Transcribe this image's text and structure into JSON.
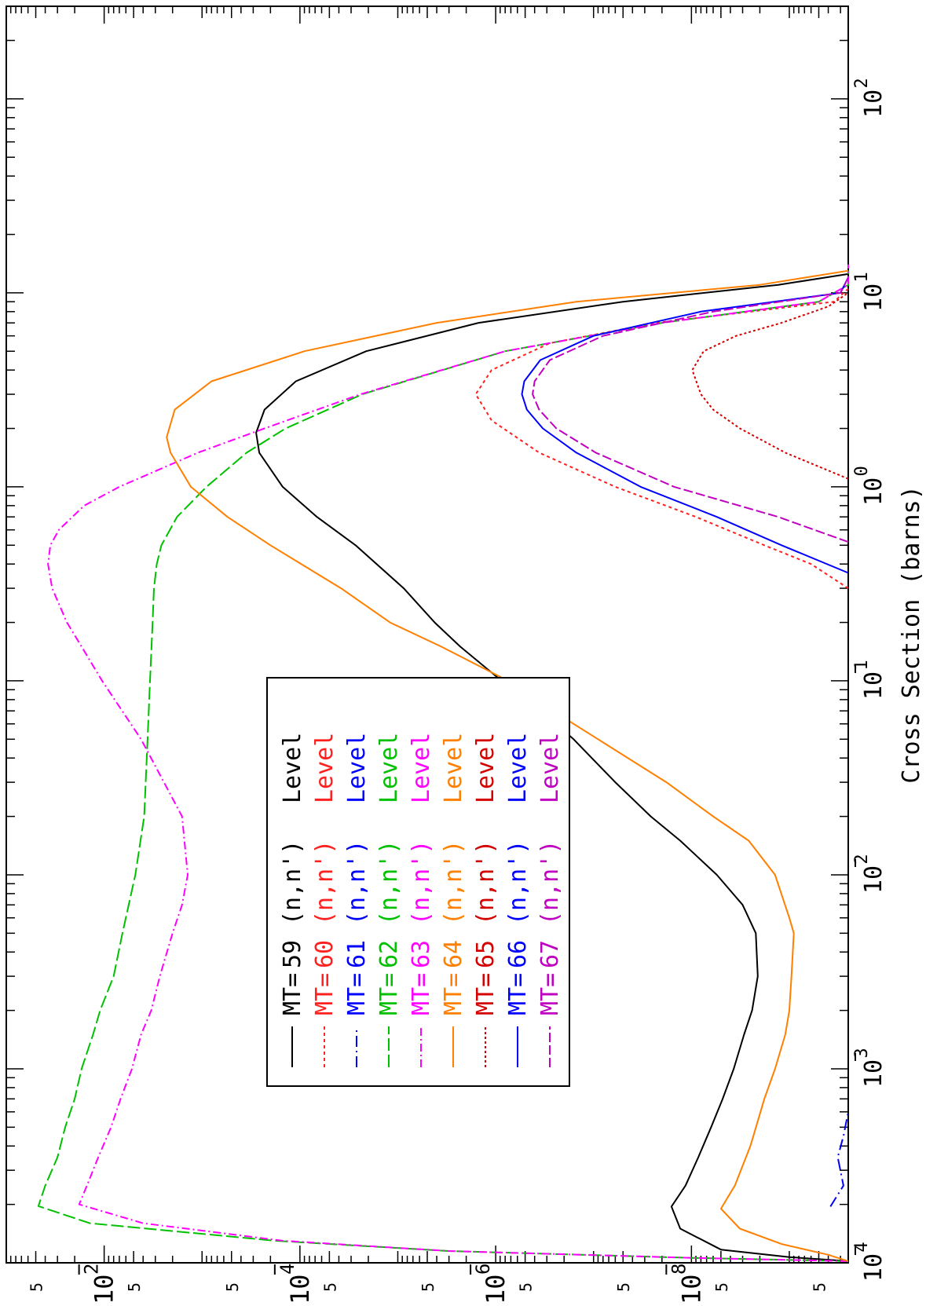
{
  "chart_data": {
    "type": "line",
    "ylabel": "Cross Section (barns)",
    "xlabel": "",
    "x_scale": "log",
    "y_scale": "log",
    "xlim": [
      0.0001,
      300
    ],
    "ylim": [
      2.5e-10,
      0.1
    ],
    "x_ticks": [
      {
        "value": 0.0001,
        "base": "10",
        "exp": "4",
        "neg": true
      },
      {
        "value": 0.001,
        "base": "10",
        "exp": "3",
        "neg": true
      },
      {
        "value": 0.01,
        "base": "10",
        "exp": "2",
        "neg": true
      },
      {
        "value": 0.1,
        "base": "10",
        "exp": "1",
        "neg": true
      },
      {
        "value": 1,
        "base": "10",
        "exp": "0",
        "neg": false
      },
      {
        "value": 10,
        "base": "10",
        "exp": "1",
        "neg": false
      },
      {
        "value": 100,
        "base": "10",
        "exp": "2",
        "neg": false
      }
    ],
    "y_ticks": [
      {
        "value": 0.01,
        "base": "10",
        "exp": "2",
        "neg": true
      },
      {
        "value": 0.0001,
        "base": "10",
        "exp": "4",
        "neg": true
      },
      {
        "value": 1e-06,
        "base": "10",
        "exp": "6",
        "neg": true
      },
      {
        "value": 1e-08,
        "base": "10",
        "exp": "8",
        "neg": true
      }
    ],
    "y_minor_labels": [
      {
        "value": 0.05,
        "label": "5"
      },
      {
        "value": 0.005,
        "label": "5"
      },
      {
        "value": 0.0005,
        "label": "5"
      },
      {
        "value": 5e-05,
        "label": "5"
      },
      {
        "value": 5e-06,
        "label": "5"
      },
      {
        "value": 5e-07,
        "label": "5"
      },
      {
        "value": 5e-08,
        "label": "5"
      },
      {
        "value": 5e-09,
        "label": "5"
      },
      {
        "value": 5e-10,
        "label": "5"
      }
    ],
    "series": [
      {
        "name": "MT= 59 (n,n') Level",
        "mt": "MT=",
        "num": "59",
        "reaction": "(n,n')",
        "level": "Level",
        "color": "#000000",
        "dash": "",
        "x": [
          0.000102,
          0.000107,
          0.000117,
          0.00015,
          0.000195,
          0.00025,
          0.00035,
          0.0005,
          0.0007,
          0.001,
          0.0015,
          0.002,
          0.003,
          0.005,
          0.007,
          0.01,
          0.015,
          0.02,
          0.03,
          0.05,
          0.07,
          0.1,
          0.15,
          0.2,
          0.3,
          0.5,
          0.7,
          1,
          1.5,
          1.9,
          2.5,
          3.5,
          5,
          7,
          9,
          11,
          12.5
        ],
        "y": [
          2.5e-10,
          1e-09,
          5e-09,
          1.3e-08,
          1.6e-08,
          1.15e-08,
          8.5e-09,
          6.3e-09,
          4.8e-09,
          3.7e-09,
          2.9e-09,
          2.4e-09,
          2.1e-09,
          2.2e-09,
          3e-09,
          5.5e-09,
          1.3e-08,
          2.6e-08,
          6e-08,
          1.6e-07,
          3.4e-07,
          8.7e-07,
          2.3e-06,
          4.2e-06,
          8.7e-06,
          2.7e-05,
          6.7e-05,
          0.00015,
          0.00026,
          0.00028,
          0.00023,
          0.00011,
          2.1e-05,
          1.5e-06,
          5e-08,
          1.3e-09,
          2.5e-10
        ]
      },
      {
        "name": "MT= 60 (n,n') Level",
        "mt": "MT=",
        "num": "60",
        "reaction": "(n,n')",
        "level": "Level",
        "color": "#ff2020",
        "dash": "4,4",
        "x": [
          0.3,
          0.4,
          0.5,
          0.7,
          1,
          1.5,
          2.2,
          3,
          4,
          5.5,
          7,
          9,
          10.5
        ],
        "y": [
          2.5e-10,
          6e-10,
          1.8e-09,
          9e-09,
          6e-08,
          3.6e-07,
          1.1e-06,
          1.6e-06,
          1.1e-06,
          2.8e-07,
          2.3e-08,
          3.5e-10,
          2.5e-10
        ]
      },
      {
        "name": "MT= 61 (n,n') Level",
        "mt": "MT=",
        "num": "61",
        "reaction": "(n,n')",
        "level": "Level",
        "color": "#0000ff",
        "dash": "14,5,2,5",
        "x": [
          0.000195,
          0.00025,
          0.00035,
          0.00045,
          0.0006
        ],
        "y": [
          3.8e-10,
          2.8e-10,
          3.2e-10,
          2.8e-10,
          2.5e-10
        ]
      },
      {
        "name": "MT= 62 (n,n') Level",
        "mt": "MT=",
        "num": "62",
        "reaction": "(n,n')",
        "level": "Level",
        "color": "#00c000",
        "dash": "16,5",
        "x": [
          0.000102,
          0.000106,
          0.000115,
          0.00013,
          0.00016,
          0.000196,
          0.00025,
          0.00035,
          0.0005,
          0.0007,
          0.001,
          0.0015,
          0.002,
          0.003,
          0.005,
          0.01,
          0.02,
          0.05,
          0.1,
          0.2,
          0.3,
          0.4,
          0.5,
          0.7,
          1,
          1.5,
          2,
          3,
          5,
          7,
          9,
          11,
          13
        ],
        "y": [
          2.5e-10,
          1e-08,
          3e-06,
          0.00018,
          0.014,
          0.047,
          0.04,
          0.03,
          0.025,
          0.02,
          0.017,
          0.013,
          0.011,
          0.008,
          0.0065,
          0.0048,
          0.0039,
          0.0036,
          0.0034,
          0.0032,
          0.0031,
          0.0029,
          0.0026,
          0.0018,
          0.0009,
          0.00035,
          0.00014,
          2.3e-05,
          8e-07,
          2e-08,
          5e-10,
          2.5e-10,
          2.5e-10
        ]
      },
      {
        "name": "MT= 63 (n,n') Level",
        "mt": "MT=",
        "num": "63",
        "reaction": "(n,n')",
        "level": "Level",
        "color": "#ff00ff",
        "dash": "10,4,2,4",
        "x": [
          0.000102,
          0.000106,
          0.000115,
          0.00013,
          0.00016,
          0.0002,
          0.00025,
          0.00035,
          0.0005,
          0.0007,
          0.001,
          0.0015,
          0.002,
          0.003,
          0.005,
          0.007,
          0.01,
          0.02,
          0.05,
          0.1,
          0.15,
          0.2,
          0.3,
          0.4,
          0.5,
          0.6,
          0.8,
          1,
          1.5,
          2,
          3,
          5,
          7,
          9,
          11,
          14
        ],
        "y": [
          2.5e-10,
          1e-08,
          3e-06,
          0.00015,
          0.004,
          0.018,
          0.015,
          0.0115,
          0.0085,
          0.0068,
          0.0052,
          0.0042,
          0.0033,
          0.0027,
          0.002,
          0.0016,
          0.0014,
          0.0016,
          0.0042,
          0.0105,
          0.017,
          0.024,
          0.034,
          0.0375,
          0.0355,
          0.029,
          0.016,
          0.007,
          0.0011,
          0.00023,
          2.4e-05,
          8e-07,
          2e-08,
          5e-10,
          2.5e-10,
          2.5e-10
        ]
      },
      {
        "name": "MT= 64 (n,n') Level",
        "mt": "MT=",
        "num": "64",
        "reaction": "(n,n')",
        "level": "Level",
        "color": "#ff8000",
        "dash": "",
        "x": [
          0.000102,
          0.00011,
          0.000125,
          0.00015,
          0.00019,
          0.00025,
          0.0004,
          0.0007,
          0.001,
          0.0015,
          0.002,
          0.003,
          0.005,
          0.006,
          0.01,
          0.015,
          0.02,
          0.03,
          0.05,
          0.07,
          0.1,
          0.15,
          0.2,
          0.3,
          0.5,
          0.7,
          1,
          1.5,
          1.8,
          2.5,
          3.5,
          5,
          7,
          9,
          11,
          13
        ],
        "y": [
          2.5e-10,
          4e-10,
          1.2e-09,
          3.2e-09,
          5e-09,
          3.6e-09,
          2.5e-09,
          1.8e-09,
          1.4e-09,
          1.1e-09,
          1e-09,
          9.5e-10,
          9e-10,
          1e-09,
          1.4e-09,
          2.6e-09,
          6e-09,
          1.8e-08,
          9e-08,
          2.6e-07,
          7.5e-07,
          3.6e-06,
          1.2e-05,
          3.8e-05,
          0.0002,
          0.00055,
          0.0013,
          0.0021,
          0.0023,
          0.0019,
          0.0008,
          9e-05,
          4e-06,
          1.5e-07,
          2e-09,
          2.5e-10
        ]
      },
      {
        "name": "MT= 65 (n,n') Level",
        "mt": "MT=",
        "num": "65",
        "reaction": "(n,n')",
        "level": "Level",
        "color": "#d40000",
        "dash": "3,3",
        "x": [
          1.1,
          1.5,
          2,
          2.5,
          3,
          4,
          5,
          6,
          7,
          8.5,
          10
        ],
        "y": [
          2.5e-10,
          1.1e-09,
          3.2e-09,
          6e-09,
          8e-09,
          9.8e-09,
          7.5e-09,
          3.5e-09,
          1.2e-09,
          4e-10,
          2.5e-10
        ]
      },
      {
        "name": "MT= 66 (n,n') Level",
        "mt": "MT=",
        "num": "66",
        "reaction": "(n,n')",
        "level": "Level",
        "color": "#0000ff",
        "dash": "",
        "x": [
          0.36,
          0.5,
          0.7,
          1,
          1.5,
          2,
          2.5,
          3,
          3.5,
          4.5,
          6,
          8,
          10,
          12
        ],
        "y": [
          2.5e-10,
          1.2e-09,
          5.5e-09,
          3.3e-08,
          1.5e-07,
          3.3e-07,
          4.8e-07,
          5.4e-07,
          5.1e-07,
          3.5e-07,
          1e-07,
          8e-09,
          3e-10,
          2.5e-10
        ]
      },
      {
        "name": "MT= 67 (n,n') Level",
        "mt": "MT=",
        "num": "67",
        "reaction": "(n,n')",
        "level": "Level",
        "color": "#c000c0",
        "dash": "12,4",
        "x": [
          0.52,
          0.7,
          1,
          1.5,
          2,
          2.5,
          3,
          3.5,
          4.5,
          6,
          8,
          10,
          12
        ],
        "y": [
          2.5e-10,
          1.3e-09,
          1.5e-08,
          9.5e-08,
          2.4e-07,
          3.6e-07,
          4.2e-07,
          4e-07,
          2.8e-07,
          8e-08,
          6e-09,
          3e-10,
          2.5e-10
        ]
      }
    ]
  }
}
